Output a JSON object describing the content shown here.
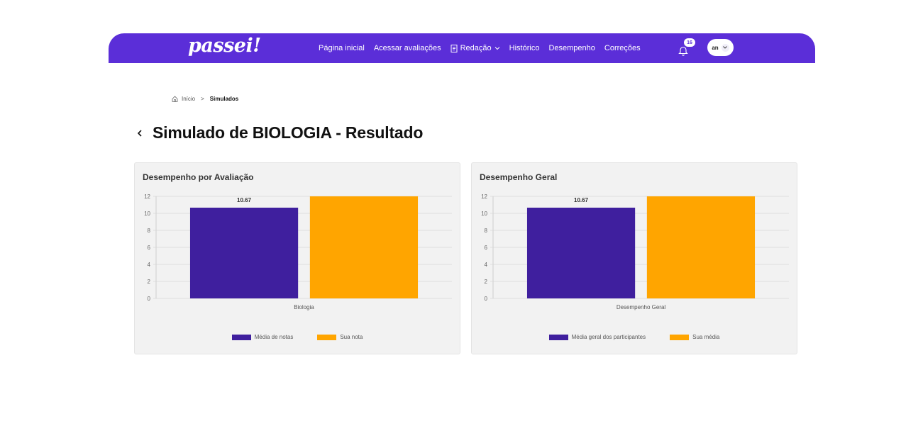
{
  "colors": {
    "brand": "#5b2ed8",
    "series_avg": "#3f1f9e",
    "series_you": "#ffa500"
  },
  "navbar": {
    "logo": "passei!",
    "links": [
      "Página inicial",
      "Acessar avaliações",
      "Redação",
      "Histórico",
      "Desempenho",
      "Correções"
    ],
    "redacao_icon": "document-icon",
    "redacao_chevron": "chevron-down-icon",
    "notifications_count": "16",
    "bell_icon": "bell-icon",
    "user_initials": "an",
    "user_chevron": "chevron-down-icon"
  },
  "breadcrumb": {
    "home": "Início",
    "home_icon": "home-icon",
    "separator": ">",
    "current": "Simulados"
  },
  "page": {
    "back_icon": "chevron-left-icon",
    "title": "Simulado de BIOLOGIA - Resultado"
  },
  "cards": [
    {
      "title": "Desempenho por Avaliação"
    },
    {
      "title": "Desempenho Geral"
    }
  ],
  "chart_data": [
    {
      "type": "bar",
      "title": "Desempenho por Avaliação",
      "categories": [
        "Biologia"
      ],
      "series": [
        {
          "name": "Média de notas",
          "values": [
            10.67
          ],
          "color": "#3f1f9e",
          "data_label": "10.67"
        },
        {
          "name": "Sua nota",
          "values": [
            12
          ],
          "color": "#ffa500"
        }
      ],
      "ylim": [
        0,
        12
      ],
      "yticks": [
        "0",
        "2",
        "4",
        "6",
        "8",
        "10",
        "12"
      ],
      "grid": true,
      "legend": "bottom"
    },
    {
      "type": "bar",
      "title": "Desempenho Geral",
      "categories": [
        "Desempenho Geral"
      ],
      "series": [
        {
          "name": "Média geral dos participantes",
          "values": [
            10.67
          ],
          "color": "#3f1f9e",
          "data_label": "10.67"
        },
        {
          "name": "Sua média",
          "values": [
            12
          ],
          "color": "#ffa500"
        }
      ],
      "ylim": [
        0,
        12
      ],
      "yticks": [
        "0",
        "2",
        "4",
        "6",
        "8",
        "10",
        "12"
      ],
      "grid": true,
      "legend": "bottom"
    }
  ]
}
